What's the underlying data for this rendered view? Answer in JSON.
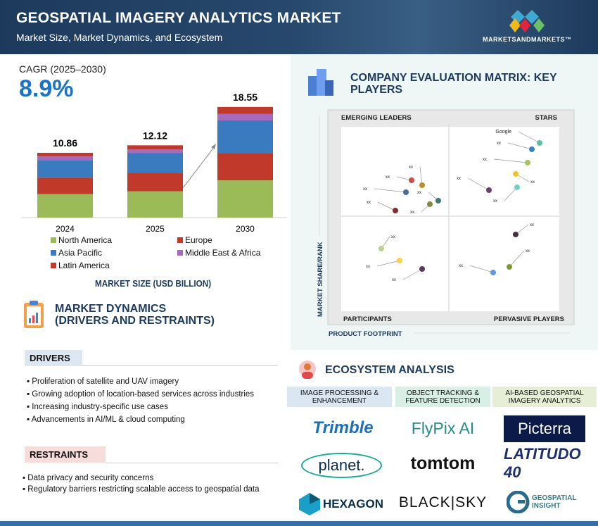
{
  "header": {
    "title": "GEOSPATIAL IMAGERY ANALYTICS MARKET",
    "subtitle": "Market Size, Market Dynamics, and Ecosystem",
    "logo": "MARKETSANDMARKETS™"
  },
  "cagr": {
    "label": "CAGR (2025–2030)",
    "value": "8.9%"
  },
  "chart_data": {
    "type": "bar",
    "stacked": true,
    "title": "MARKET SIZE (USD BILLION)",
    "categories": [
      "2024",
      "2025",
      "2030"
    ],
    "totals": [
      "10.86",
      "12.12",
      "18.55"
    ],
    "series": [
      {
        "name": "North America",
        "color": "#9bbb59",
        "values": [
          3.95,
          4.4,
          6.25
        ]
      },
      {
        "name": "Europe",
        "color": "#c0392b",
        "values": [
          2.75,
          3.1,
          4.6
        ]
      },
      {
        "name": "Asia Pacific",
        "color": "#3a7bbf",
        "values": [
          2.95,
          3.35,
          5.45
        ]
      },
      {
        "name": "Middle East & Africa",
        "color": "#a569bd",
        "values": [
          0.6,
          0.56,
          1.07
        ]
      },
      {
        "name": "Latin America",
        "color": "#c0392b",
        "values": [
          0.61,
          0.71,
          1.18
        ]
      }
    ],
    "ylim": [
      0,
      20
    ]
  },
  "matrix": {
    "title": "COMPANY EVALUATION MATRIX: KEY PLAYERS",
    "quadrants": {
      "tl": "EMERGING LEADERS",
      "tr": "STARS",
      "bl": "PARTICIPANTS",
      "br": "PERVASIVE PLAYERS"
    },
    "ylabel": "MARKET SHARE/RANK",
    "xlabel": "PRODUCT FOOTPRINT",
    "players": [
      "Google",
      "xx",
      "xx",
      "xx",
      "xx",
      "xx",
      "xx",
      "xx",
      "xx",
      "xx",
      "xx",
      "xx",
      "xx",
      "xx",
      "xx",
      "xx",
      "xx",
      "xx"
    ]
  },
  "dynamics": {
    "title1": "MARKET DYNAMICS",
    "title2": "(DRIVERS AND RESTRAINTS)",
    "drivers_label": "DRIVERS",
    "drivers": [
      "Proliferation of satellite and UAV imagery",
      "Growing adoption of location-based services across industries",
      "Increasing industry-specific use cases",
      "Advancements in AI/ML & cloud computing"
    ],
    "restraints_label": "RESTRAINTS",
    "restraints": [
      "Data privacy and security concerns",
      "Regulatory barriers restricting scalable access to geospatial data"
    ]
  },
  "ecosystem": {
    "title": "ECOSYSTEM ANALYSIS",
    "columns": [
      {
        "header": "IMAGE PROCESSING & ENHANCEMENT",
        "logos": [
          "Trimble",
          "planet.",
          "HEXAGON"
        ]
      },
      {
        "header": "OBJECT TRACKING & FEATURE DETECTION",
        "logos": [
          "FlyPix AI",
          "tomtom",
          "BLACK|SKY"
        ]
      },
      {
        "header": "AI-BASED GEOSPATIAL IMAGERY ANALYTICS",
        "logos": [
          "Picterra",
          "LATITUDO 40",
          "GEOSPATIAL INSIGHT"
        ]
      }
    ]
  }
}
